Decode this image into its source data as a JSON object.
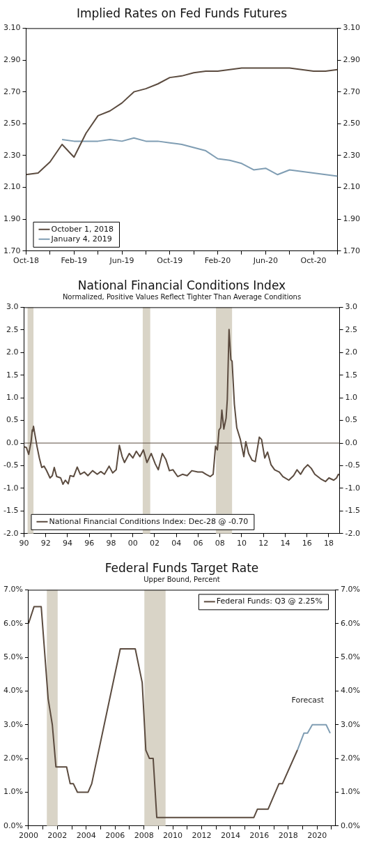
{
  "chart_data": [
    {
      "type": "line",
      "title": "Implied Rates on Fed Funds Futures",
      "legend": "bottom left",
      "xlim": [
        "2018-10",
        "2020-12"
      ],
      "xticks": [
        {
          "value": "2018-10",
          "label": "Oct-18"
        },
        {
          "value": "2018-12",
          "label": null
        },
        {
          "value": "2019-02",
          "label": "Feb-19"
        },
        {
          "value": "2019-04",
          "label": null
        },
        {
          "value": "2019-06",
          "label": "Jun-19"
        },
        {
          "value": "2019-08",
          "label": null
        },
        {
          "value": "2019-10",
          "label": "Oct-19"
        },
        {
          "value": "2019-12",
          "label": null
        },
        {
          "value": "2020-02",
          "label": "Feb-20"
        },
        {
          "value": "2020-04",
          "label": null
        },
        {
          "value": "2020-06",
          "label": "Jun-20"
        },
        {
          "value": "2020-08",
          "label": null
        },
        {
          "value": "2020-10",
          "label": "Oct-20"
        },
        {
          "value": "2020-12",
          "label": null
        }
      ],
      "ylim": [
        1.7,
        3.1
      ],
      "yticks": [
        {
          "value": 1.7,
          "label": "1.70"
        },
        {
          "value": 1.9,
          "label": "1.90"
        },
        {
          "value": 2.1,
          "label": "2.10"
        },
        {
          "value": 2.3,
          "label": "2.30"
        },
        {
          "value": 2.5,
          "label": "2.50"
        },
        {
          "value": 2.7,
          "label": "2.70"
        },
        {
          "value": 2.9,
          "label": "2.90"
        },
        {
          "value": 3.1,
          "label": "3.10"
        }
      ],
      "y2lim": [
        1.7,
        3.1
      ],
      "y2ticks": [
        {
          "value": 1.7,
          "label": "1.70"
        },
        {
          "value": 1.9,
          "label": "1.90"
        },
        {
          "value": 2.1,
          "label": "2.10"
        },
        {
          "value": 2.3,
          "label": "2.30"
        },
        {
          "value": 2.5,
          "label": "2.50"
        },
        {
          "value": 2.7,
          "label": "2.70"
        },
        {
          "value": 2.9,
          "label": "2.90"
        },
        {
          "value": 3.1,
          "label": "3.10"
        }
      ],
      "series": [
        {
          "name": "October 1, 2018",
          "color": "#5b4b3f",
          "x": [
            "2018-10",
            "2018-11",
            "2018-12",
            "2019-01",
            "2019-02",
            "2019-03",
            "2019-04",
            "2019-05",
            "2019-06",
            "2019-07",
            "2019-08",
            "2019-09",
            "2019-10",
            "2019-11",
            "2019-12",
            "2020-01",
            "2020-02",
            "2020-03",
            "2020-04",
            "2020-05",
            "2020-06",
            "2020-07",
            "2020-08",
            "2020-09",
            "2020-10",
            "2020-11",
            "2020-12"
          ],
          "values": [
            2.18,
            2.19,
            2.26,
            2.37,
            2.29,
            2.44,
            2.55,
            2.58,
            2.63,
            2.7,
            2.72,
            2.75,
            2.79,
            2.8,
            2.82,
            2.83,
            2.83,
            2.84,
            2.85,
            2.85,
            2.85,
            2.85,
            2.85,
            2.84,
            2.83,
            2.83,
            2.84
          ]
        },
        {
          "name": "January 4, 2019",
          "color": "#7f9db3",
          "x": [
            "2019-01",
            "2019-02",
            "2019-03",
            "2019-04",
            "2019-05",
            "2019-06",
            "2019-07",
            "2019-08",
            "2019-09",
            "2019-10",
            "2019-11",
            "2019-12",
            "2020-01",
            "2020-02",
            "2020-03",
            "2020-04",
            "2020-05",
            "2020-06",
            "2020-07",
            "2020-08",
            "2020-09",
            "2020-10",
            "2020-11",
            "2020-12"
          ],
          "values": [
            2.4,
            2.39,
            2.39,
            2.39,
            2.4,
            2.39,
            2.41,
            2.39,
            2.39,
            2.38,
            2.37,
            2.35,
            2.33,
            2.28,
            2.27,
            2.25,
            2.21,
            2.22,
            2.18,
            2.21,
            2.2,
            2.19,
            2.18,
            2.17
          ]
        }
      ]
    },
    {
      "type": "line",
      "title": "National Financial Conditions Index",
      "subtitle": "Normalized, Positive Values Reflect Tighter Than Average Conditions",
      "legend": "bottom left",
      "xlim": [
        1990,
        2019
      ],
      "xticks": [
        {
          "value": 1990,
          "label": "90"
        },
        {
          "value": 1992,
          "label": "92"
        },
        {
          "value": 1994,
          "label": "94"
        },
        {
          "value": 1996,
          "label": "96"
        },
        {
          "value": 1998,
          "label": "98"
        },
        {
          "value": 2000,
          "label": "00"
        },
        {
          "value": 2002,
          "label": "02"
        },
        {
          "value": 2004,
          "label": "04"
        },
        {
          "value": 2006,
          "label": "06"
        },
        {
          "value": 2008,
          "label": "08"
        },
        {
          "value": 2010,
          "label": "10"
        },
        {
          "value": 2012,
          "label": "12"
        },
        {
          "value": 2014,
          "label": "14"
        },
        {
          "value": 2016,
          "label": "16"
        },
        {
          "value": 2018,
          "label": "18"
        }
      ],
      "ylim": [
        -2,
        3
      ],
      "yticks": [
        {
          "value": -2,
          "label": "-2.0"
        },
        {
          "value": -1.5,
          "label": "-1.5"
        },
        {
          "value": -1,
          "label": "-1.0"
        },
        {
          "value": -0.5,
          "label": "-0.5"
        },
        {
          "value": 0,
          "label": "0.0"
        },
        {
          "value": 0.5,
          "label": "0.5"
        },
        {
          "value": 1,
          "label": "1.0"
        },
        {
          "value": 1.5,
          "label": "1.5"
        },
        {
          "value": 2,
          "label": "2.0"
        },
        {
          "value": 2.5,
          "label": "2.5"
        },
        {
          "value": 3,
          "label": "3.0"
        }
      ],
      "y2lim": [
        -2,
        3
      ],
      "y2ticks": [
        {
          "value": -2,
          "label": "-2.0"
        },
        {
          "value": -1.5,
          "label": "-1.5"
        },
        {
          "value": -1,
          "label": "-1.0"
        },
        {
          "value": -0.5,
          "label": "-0.5"
        },
        {
          "value": 0,
          "label": "0.0"
        },
        {
          "value": 0.5,
          "label": "0.5"
        },
        {
          "value": 1,
          "label": "1.0"
        },
        {
          "value": 1.5,
          "label": "1.5"
        },
        {
          "value": 2,
          "label": "2.0"
        },
        {
          "value": 2.5,
          "label": "2.5"
        },
        {
          "value": 3,
          "label": "3.0"
        }
      ],
      "bands": [
        {
          "axis": "x",
          "from": 1990.33,
          "to": 1990.87,
          "color": "#d9d4c7"
        },
        {
          "axis": "x",
          "from": 2000.91,
          "to": 2001.6,
          "color": "#d9d4c7"
        },
        {
          "axis": "x",
          "from": 2007.64,
          "to": 2009.12,
          "color": "#d9d4c7"
        }
      ],
      "ref_lines": [
        {
          "axis": "y",
          "value": 0,
          "color": "#5b4b3f"
        }
      ],
      "series": [
        {
          "name": "National Financial Conditions Index: Dec-28 @ -0.70",
          "color": "#5b4b3f",
          "x": [
            1990.0,
            1990.22,
            1990.43,
            1990.65,
            1990.76,
            1990.8,
            1990.87,
            1991.19,
            1991.41,
            1991.63,
            1991.84,
            1992.06,
            1992.39,
            1992.6,
            1992.78,
            1993.0,
            1993.37,
            1993.58,
            1993.8,
            1994.06,
            1994.24,
            1994.56,
            1994.89,
            1995.17,
            1995.54,
            1995.87,
            1996.3,
            1996.73,
            1997.06,
            1997.39,
            1997.82,
            1998.15,
            1998.47,
            1998.76,
            1999.02,
            1999.23,
            1999.67,
            2000.0,
            2000.32,
            2000.65,
            2000.97,
            2001.3,
            2001.69,
            2002.06,
            2002.34,
            2002.71,
            2003.03,
            2003.36,
            2003.69,
            2004.12,
            2004.56,
            2004.99,
            2005.42,
            2005.97,
            2006.4,
            2006.73,
            2007.12,
            2007.38,
            2007.6,
            2007.77,
            2007.92,
            2008.07,
            2008.18,
            2008.36,
            2008.57,
            2008.68,
            2008.84,
            2009.01,
            2009.12,
            2009.33,
            2009.55,
            2009.88,
            2010.2,
            2010.38,
            2010.64,
            2010.96,
            2011.25,
            2011.62,
            2011.83,
            2012.12,
            2012.38,
            2012.7,
            2013.03,
            2013.46,
            2013.79,
            2014.33,
            2014.77,
            2015.09,
            2015.42,
            2015.74,
            2016.07,
            2016.4,
            2016.72,
            2017.26,
            2017.7,
            2018.02,
            2018.46,
            2018.72,
            2018.89,
            2018.99
          ],
          "values": [
            -0.08,
            -0.1,
            -0.25,
            0.03,
            0.29,
            0.26,
            0.37,
            -0.07,
            -0.33,
            -0.54,
            -0.51,
            -0.6,
            -0.77,
            -0.72,
            -0.54,
            -0.74,
            -0.77,
            -0.91,
            -0.82,
            -0.9,
            -0.72,
            -0.74,
            -0.53,
            -0.69,
            -0.64,
            -0.72,
            -0.61,
            -0.69,
            -0.63,
            -0.69,
            -0.51,
            -0.66,
            -0.59,
            -0.05,
            -0.3,
            -0.43,
            -0.23,
            -0.33,
            -0.18,
            -0.3,
            -0.15,
            -0.43,
            -0.23,
            -0.46,
            -0.59,
            -0.23,
            -0.36,
            -0.61,
            -0.59,
            -0.74,
            -0.69,
            -0.72,
            -0.61,
            -0.64,
            -0.64,
            -0.69,
            -0.74,
            -0.69,
            -0.07,
            -0.15,
            0.29,
            0.34,
            0.73,
            0.31,
            0.55,
            0.96,
            2.51,
            1.84,
            1.81,
            0.86,
            0.34,
            0.08,
            -0.3,
            0.03,
            -0.23,
            -0.38,
            -0.41,
            0.13,
            0.08,
            -0.33,
            -0.2,
            -0.48,
            -0.59,
            -0.64,
            -0.74,
            -0.82,
            -0.72,
            -0.59,
            -0.69,
            -0.56,
            -0.48,
            -0.56,
            -0.69,
            -0.79,
            -0.85,
            -0.77,
            -0.82,
            -0.77,
            -0.69,
            -0.7
          ]
        }
      ]
    },
    {
      "type": "line",
      "title": "Federal Funds Target Rate",
      "subtitle": "Upper Bound, Percent",
      "legend": "top right",
      "xlim": [
        2000,
        2021.25
      ],
      "xticks": [
        {
          "value": 2000,
          "label": "2000"
        },
        {
          "value": 2001,
          "label": null
        },
        {
          "value": 2002,
          "label": "2002"
        },
        {
          "value": 2003,
          "label": null
        },
        {
          "value": 2004,
          "label": "2004"
        },
        {
          "value": 2005,
          "label": null
        },
        {
          "value": 2006,
          "label": "2006"
        },
        {
          "value": 2007,
          "label": null
        },
        {
          "value": 2008,
          "label": "2008"
        },
        {
          "value": 2009,
          "label": null
        },
        {
          "value": 2010,
          "label": "2010"
        },
        {
          "value": 2011,
          "label": null
        },
        {
          "value": 2012,
          "label": "2012"
        },
        {
          "value": 2013,
          "label": null
        },
        {
          "value": 2014,
          "label": "2014"
        },
        {
          "value": 2015,
          "label": null
        },
        {
          "value": 2016,
          "label": "2016"
        },
        {
          "value": 2017,
          "label": null
        },
        {
          "value": 2018,
          "label": "2018"
        },
        {
          "value": 2019,
          "label": null
        },
        {
          "value": 2020,
          "label": "2020"
        },
        {
          "value": 2021,
          "label": null
        }
      ],
      "ylim": [
        0,
        7
      ],
      "yticks": [
        {
          "value": 0,
          "label": "0.0%"
        },
        {
          "value": 1,
          "label": "1.0%"
        },
        {
          "value": 2,
          "label": "2.0%"
        },
        {
          "value": 3,
          "label": "3.0%"
        },
        {
          "value": 4,
          "label": "4.0%"
        },
        {
          "value": 5,
          "label": "5.0%"
        },
        {
          "value": 6,
          "label": "6.0%"
        },
        {
          "value": 7,
          "label": "7.0%"
        }
      ],
      "y2lim": [
        0,
        7
      ],
      "y2ticks": [
        {
          "value": 0,
          "label": "0.0%"
        },
        {
          "value": 1,
          "label": "1.0%"
        },
        {
          "value": 2,
          "label": "2.0%"
        },
        {
          "value": 3,
          "label": "3.0%"
        },
        {
          "value": 4,
          "label": "4.0%"
        },
        {
          "value": 5,
          "label": "5.0%"
        },
        {
          "value": 6,
          "label": "6.0%"
        },
        {
          "value": 7,
          "label": "7.0%"
        }
      ],
      "bands": [
        {
          "axis": "x",
          "from": 2001.27,
          "to": 2002.02,
          "color": "#d9d4c7"
        },
        {
          "axis": "x",
          "from": 2008.03,
          "to": 2009.5,
          "color": "#d9d4c7"
        }
      ],
      "annotations": [
        "Forecast"
      ],
      "series": [
        {
          "name": "Federal Funds: Q3 @ 2.25%",
          "color": "#5b4b3f",
          "x": [
            2000.0,
            2000.38,
            2000.88,
            2001.36,
            2001.65,
            2001.9,
            2002.64,
            2002.89,
            2003.11,
            2003.39,
            2004.13,
            2004.38,
            2006.36,
            2007.4,
            2007.88,
            2008.13,
            2008.38,
            2008.64,
            2008.89,
            2015.62,
            2015.87,
            2016.61,
            2017.36,
            2017.6,
            2018.64
          ],
          "values": [
            6.0,
            6.5,
            6.5,
            3.77,
            3.0,
            1.75,
            1.75,
            1.25,
            1.25,
            1.0,
            1.0,
            1.25,
            5.25,
            5.25,
            4.25,
            2.25,
            2.0,
            2.0,
            0.25,
            0.25,
            0.5,
            0.5,
            1.25,
            1.25,
            2.25
          ]
        },
        {
          "color": "#7f9db3",
          "x": [
            2018.64,
            2019.09,
            2019.34,
            2019.67,
            2020.63,
            2020.91
          ],
          "values": [
            2.25,
            2.75,
            2.75,
            3.0,
            3.0,
            2.75
          ]
        }
      ]
    }
  ]
}
